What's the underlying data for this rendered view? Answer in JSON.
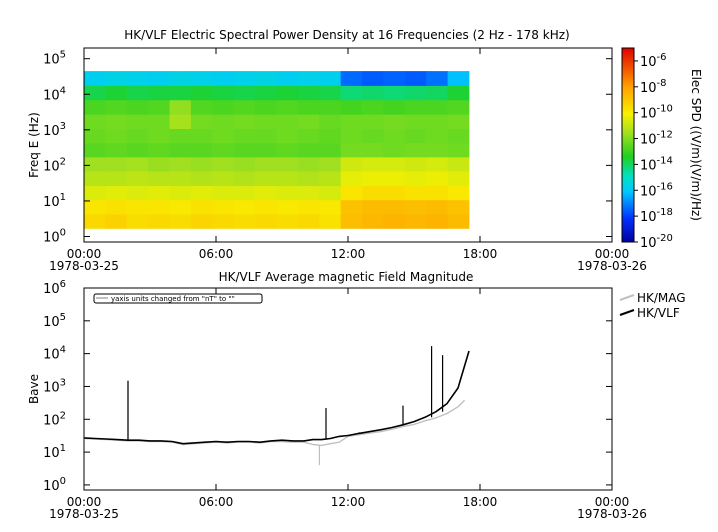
{
  "chart_data": [
    {
      "type": "heatmap",
      "title": "HK/VLF  Electric Spectral Power Density at 16 Frequencies (2 Hz - 178 kHz)",
      "ylabel": "Freq E (Hz)",
      "yscale": "log",
      "ylim": [
        0.7,
        200000
      ],
      "y_ticks": [
        {
          "base": "10",
          "exp": "0"
        },
        {
          "base": "10",
          "exp": "1"
        },
        {
          "base": "10",
          "exp": "2"
        },
        {
          "base": "10",
          "exp": "3"
        },
        {
          "base": "10",
          "exp": "4"
        },
        {
          "base": "10",
          "exp": "5"
        }
      ],
      "x_ticks": [
        {
          "label": "00:00",
          "date": "1978-03-25",
          "hours": 0
        },
        {
          "label": "06:00",
          "date": "",
          "hours": 6
        },
        {
          "label": "12:00",
          "date": "",
          "hours": 12
        },
        {
          "label": "18:00",
          "date": "",
          "hours": 18
        },
        {
          "label": "00:00",
          "date": "1978-03-26",
          "hours": 24
        }
      ],
      "xlim_hours": [
        0,
        24
      ],
      "data_time_range_hours": [
        0,
        17.5
      ],
      "colorbar": {
        "label": "Elec SPD ((V/m)(V/m)/Hz)",
        "scale": "log",
        "range_exp": [
          -20,
          -5
        ],
        "ticks": [
          {
            "base": "10",
            "exp": "-6"
          },
          {
            "base": "10",
            "exp": "-8"
          },
          {
            "base": "10",
            "exp": "-10"
          },
          {
            "base": "10",
            "exp": "-12"
          },
          {
            "base": "10",
            "exp": "-14"
          },
          {
            "base": "10",
            "exp": "-16"
          },
          {
            "base": "10",
            "exp": "-18"
          },
          {
            "base": "10",
            "exp": "-20"
          }
        ]
      },
      "frequency_bands": [
        {
          "freq_hz": 2.7,
          "log10_spd": [
            -9.5,
            -9.3,
            -9.6,
            -9.5,
            -9.6,
            -9.4,
            -9.5,
            -9.6,
            -9.5,
            -9.6,
            -9.5,
            -9.7,
            -8.8,
            -8.6,
            -8.5,
            -8.6,
            -8.5,
            -8.7
          ]
        },
        {
          "freq_hz": 6.8,
          "log10_spd": [
            -9.8,
            -9.7,
            -9.8,
            -9.8,
            -9.9,
            -9.7,
            -9.8,
            -9.9,
            -9.8,
            -9.9,
            -9.8,
            -9.9,
            -8.9,
            -8.7,
            -8.7,
            -8.8,
            -8.7,
            -8.9
          ]
        },
        {
          "freq_hz": 17,
          "log10_spd": [
            -10.6,
            -10.5,
            -10.6,
            -10.5,
            -10.6,
            -10.5,
            -10.6,
            -10.6,
            -10.5,
            -10.6,
            -10.6,
            -10.7,
            -9.8,
            -9.6,
            -9.6,
            -9.7,
            -9.7,
            -9.9
          ]
        },
        {
          "freq_hz": 43,
          "log10_spd": [
            -11.2,
            -11.2,
            -11.1,
            -11.2,
            -11.2,
            -11.3,
            -11.2,
            -11.3,
            -11.2,
            -11.2,
            -11.3,
            -11.2,
            -10.4,
            -10.3,
            -10.3,
            -10.4,
            -10.3,
            -10.5
          ]
        },
        {
          "freq_hz": 110,
          "log10_spd": [
            -11.6,
            -11.6,
            -11.5,
            -11.7,
            -11.6,
            -11.7,
            -11.6,
            -11.7,
            -11.6,
            -11.6,
            -11.7,
            -11.6,
            -10.8,
            -10.7,
            -10.7,
            -10.8,
            -10.7,
            -10.9
          ]
        },
        {
          "freq_hz": 270,
          "log10_spd": [
            -12.6,
            -12.5,
            -12.6,
            -12.5,
            -12.6,
            -12.6,
            -12.5,
            -12.6,
            -12.6,
            -12.5,
            -12.6,
            -12.6,
            -12.2,
            -12.2,
            -12.3,
            -12.2,
            -12.2,
            -12.3
          ]
        },
        {
          "freq_hz": 690,
          "log10_spd": [
            -12.4,
            -12.3,
            -12.4,
            -12.3,
            -12.4,
            -12.4,
            -12.3,
            -12.4,
            -12.4,
            -12.3,
            -12.4,
            -12.5,
            -12.3,
            -12.4,
            -12.3,
            -12.4,
            -12.3,
            -12.4
          ]
        },
        {
          "freq_hz": 1700,
          "log10_spd": [
            -12.3,
            -12.2,
            -12.3,
            -12.3,
            -11.5,
            -12.2,
            -12.3,
            -12.2,
            -12.3,
            -12.3,
            -12.2,
            -12.4,
            -12.3,
            -12.3,
            -12.2,
            -12.3,
            -12.3,
            -12.2
          ]
        },
        {
          "freq_hz": 4400,
          "log10_spd": [
            -12.8,
            -12.7,
            -12.8,
            -12.7,
            -11.8,
            -12.7,
            -12.8,
            -12.7,
            -12.8,
            -12.7,
            -12.8,
            -12.8,
            -12.9,
            -12.8,
            -12.9,
            -12.8,
            -12.8,
            -12.7
          ]
        },
        {
          "freq_hz": 11000,
          "log10_spd": [
            -13.8,
            -13.6,
            -13.8,
            -13.7,
            -13.7,
            -13.6,
            -13.7,
            -13.8,
            -13.7,
            -13.6,
            -13.7,
            -13.8,
            -14.2,
            -14.1,
            -14.2,
            -14.1,
            -14.0,
            -13.6
          ]
        },
        {
          "freq_hz": 28000,
          "log10_spd": [
            -15.8,
            -15.6,
            -15.7,
            -15.8,
            -15.6,
            -15.7,
            -15.8,
            -15.7,
            -15.6,
            -15.8,
            -15.7,
            -15.8,
            -17.4,
            -17.6,
            -17.5,
            -17.6,
            -17.3,
            -16.2
          ]
        }
      ]
    },
    {
      "type": "line",
      "title": "HK/VLF  Average magnetic Field Magnitude",
      "ylabel": "Bave",
      "yscale": "log",
      "ylim": [
        0.7,
        1000000
      ],
      "y_ticks": [
        {
          "base": "10",
          "exp": "0"
        },
        {
          "base": "10",
          "exp": "1"
        },
        {
          "base": "10",
          "exp": "2"
        },
        {
          "base": "10",
          "exp": "3"
        },
        {
          "base": "10",
          "exp": "4"
        },
        {
          "base": "10",
          "exp": "5"
        },
        {
          "base": "10",
          "exp": "6"
        }
      ],
      "x_ticks": [
        {
          "label": "00:00",
          "date": "1978-03-25",
          "hours": 0
        },
        {
          "label": "06:00",
          "date": "",
          "hours": 6
        },
        {
          "label": "12:00",
          "date": "",
          "hours": 12
        },
        {
          "label": "18:00",
          "date": "",
          "hours": 18
        },
        {
          "label": "00:00",
          "date": "1978-03-26",
          "hours": 24
        }
      ],
      "xlim_hours": [
        0,
        24
      ],
      "annotation": "yaxis units changed from \"nT\" to \"\"",
      "legend_position": "right",
      "series": [
        {
          "name": "HK/MAG",
          "color": "#c0c0c0",
          "x_hours": [
            0,
            0.5,
            1,
            1.5,
            2,
            2.5,
            3,
            3.5,
            4,
            4.5,
            5,
            5.5,
            6,
            6.5,
            7,
            7.5,
            8,
            8.5,
            9,
            9.5,
            10,
            10.4,
            10.8,
            11.2,
            11.6,
            12,
            12.5,
            13,
            13.5,
            14,
            14.5,
            15,
            15.5,
            16,
            16.5,
            17,
            17.3
          ],
          "y": [
            26,
            25,
            24,
            23,
            22,
            22,
            21,
            21,
            20,
            17,
            18,
            19,
            20,
            19,
            20,
            20,
            19,
            21,
            21,
            20,
            20,
            17,
            16,
            18,
            20,
            30,
            34,
            38,
            42,
            50,
            60,
            70,
            90,
            110,
            150,
            240,
            380
          ],
          "spikes": [
            {
              "x_hours": 2.0,
              "y": 1300
            },
            {
              "x_hours": 10.7,
              "y": 4
            }
          ]
        },
        {
          "name": "HK/VLF",
          "color": "#000000",
          "x_hours": [
            0,
            0.5,
            1,
            1.5,
            2,
            2.5,
            3,
            3.5,
            4,
            4.5,
            5,
            5.5,
            6,
            6.5,
            7,
            7.5,
            8,
            8.5,
            9,
            9.5,
            10,
            10.4,
            10.8,
            11.2,
            11.6,
            12,
            12.5,
            13,
            13.5,
            14,
            14.5,
            15,
            15.5,
            16,
            16.5,
            17,
            17.5
          ],
          "y": [
            27,
            26,
            25,
            24,
            23,
            23,
            22,
            22,
            21,
            18,
            19,
            20,
            21,
            20,
            21,
            21,
            20,
            22,
            23,
            22,
            22,
            24,
            24,
            26,
            30,
            32,
            37,
            42,
            48,
            56,
            68,
            85,
            115,
            170,
            300,
            900,
            12000
          ],
          "spikes": [
            {
              "x_hours": 2.0,
              "y": 1500
            },
            {
              "x_hours": 11.0,
              "y": 220
            },
            {
              "x_hours": 12.5,
              "y": 40
            },
            {
              "x_hours": 14.5,
              "y": 260
            },
            {
              "x_hours": 15.8,
              "y": 17000
            },
            {
              "x_hours": 16.3,
              "y": 9000
            }
          ]
        }
      ]
    }
  ]
}
